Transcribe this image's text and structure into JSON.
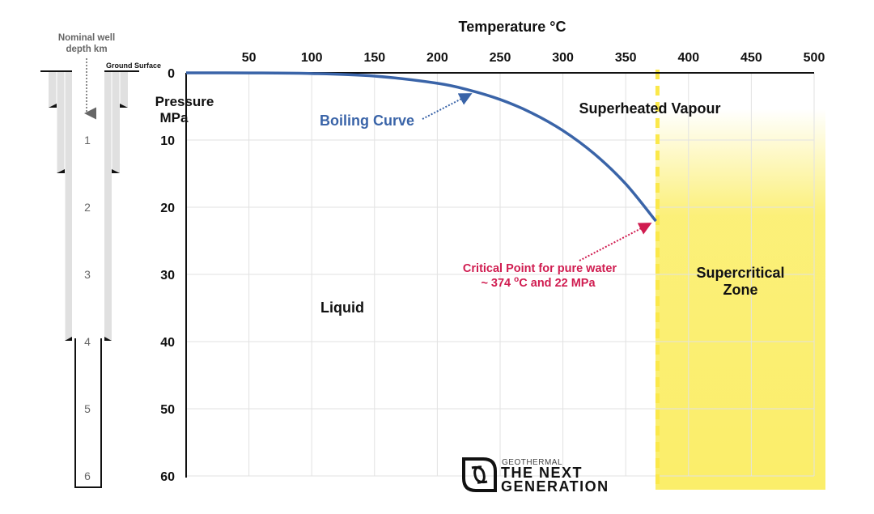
{
  "chart_data": {
    "type": "line",
    "title": "",
    "xlabel": "Temperature °C",
    "ylabel": "Pressure MPa",
    "xlim": [
      0,
      500
    ],
    "ylim": [
      0,
      60
    ],
    "y_inverted": true,
    "x_axis_position": "top",
    "grid": true,
    "x_ticks": [
      "50",
      "100",
      "150",
      "200",
      "250",
      "300",
      "350",
      "400",
      "450",
      "500"
    ],
    "y_ticks": [
      "0",
      "10",
      "20",
      "30",
      "40",
      "50",
      "60"
    ],
    "series": [
      {
        "name": "Boiling Curve",
        "color": "#3a64a8",
        "x": [
          0,
          50,
          100,
          150,
          200,
          225,
          250,
          275,
          300,
          325,
          350,
          374
        ],
        "y": [
          0,
          0.01,
          0.1,
          0.48,
          1.55,
          2.55,
          3.97,
          5.95,
          8.59,
          12.06,
          16.53,
          22.06
        ]
      }
    ],
    "critical_temperature": 374,
    "critical_pressure": 22,
    "regions": {
      "superheated": "Superheated Vapour",
      "supercritical_line1": "Supercritical",
      "supercritical_line2": "Zone",
      "liquid": "Liquid"
    },
    "annotations": {
      "boiling_curve": "Boiling Curve",
      "critical_line1": "Critical Point for pure water",
      "critical_line2_a": "~ 374 ",
      "critical_line2_sup": "o",
      "critical_line2_b": "C and 22 MPa"
    },
    "xlabel_main": "Temperature ",
    "xlabel_sup": "o",
    "xlabel_unit": "C",
    "ylabel_line1": "Pressure",
    "ylabel_line2": "MPa",
    "colors": {
      "curve": "#3a64a8",
      "critical": "#d01c50",
      "supercritical": "#fbee6a",
      "grid": "#e2e2e2"
    }
  },
  "well": {
    "title_line1": "Nominal well",
    "title_line2": "depth km",
    "ground_surface": "Ground Surface",
    "depths": [
      "1",
      "2",
      "3",
      "4",
      "5",
      "6"
    ]
  },
  "logo": {
    "line1": "GEOTHERMAL",
    "line2": "THE NEXT",
    "line3": "GENERATION"
  }
}
